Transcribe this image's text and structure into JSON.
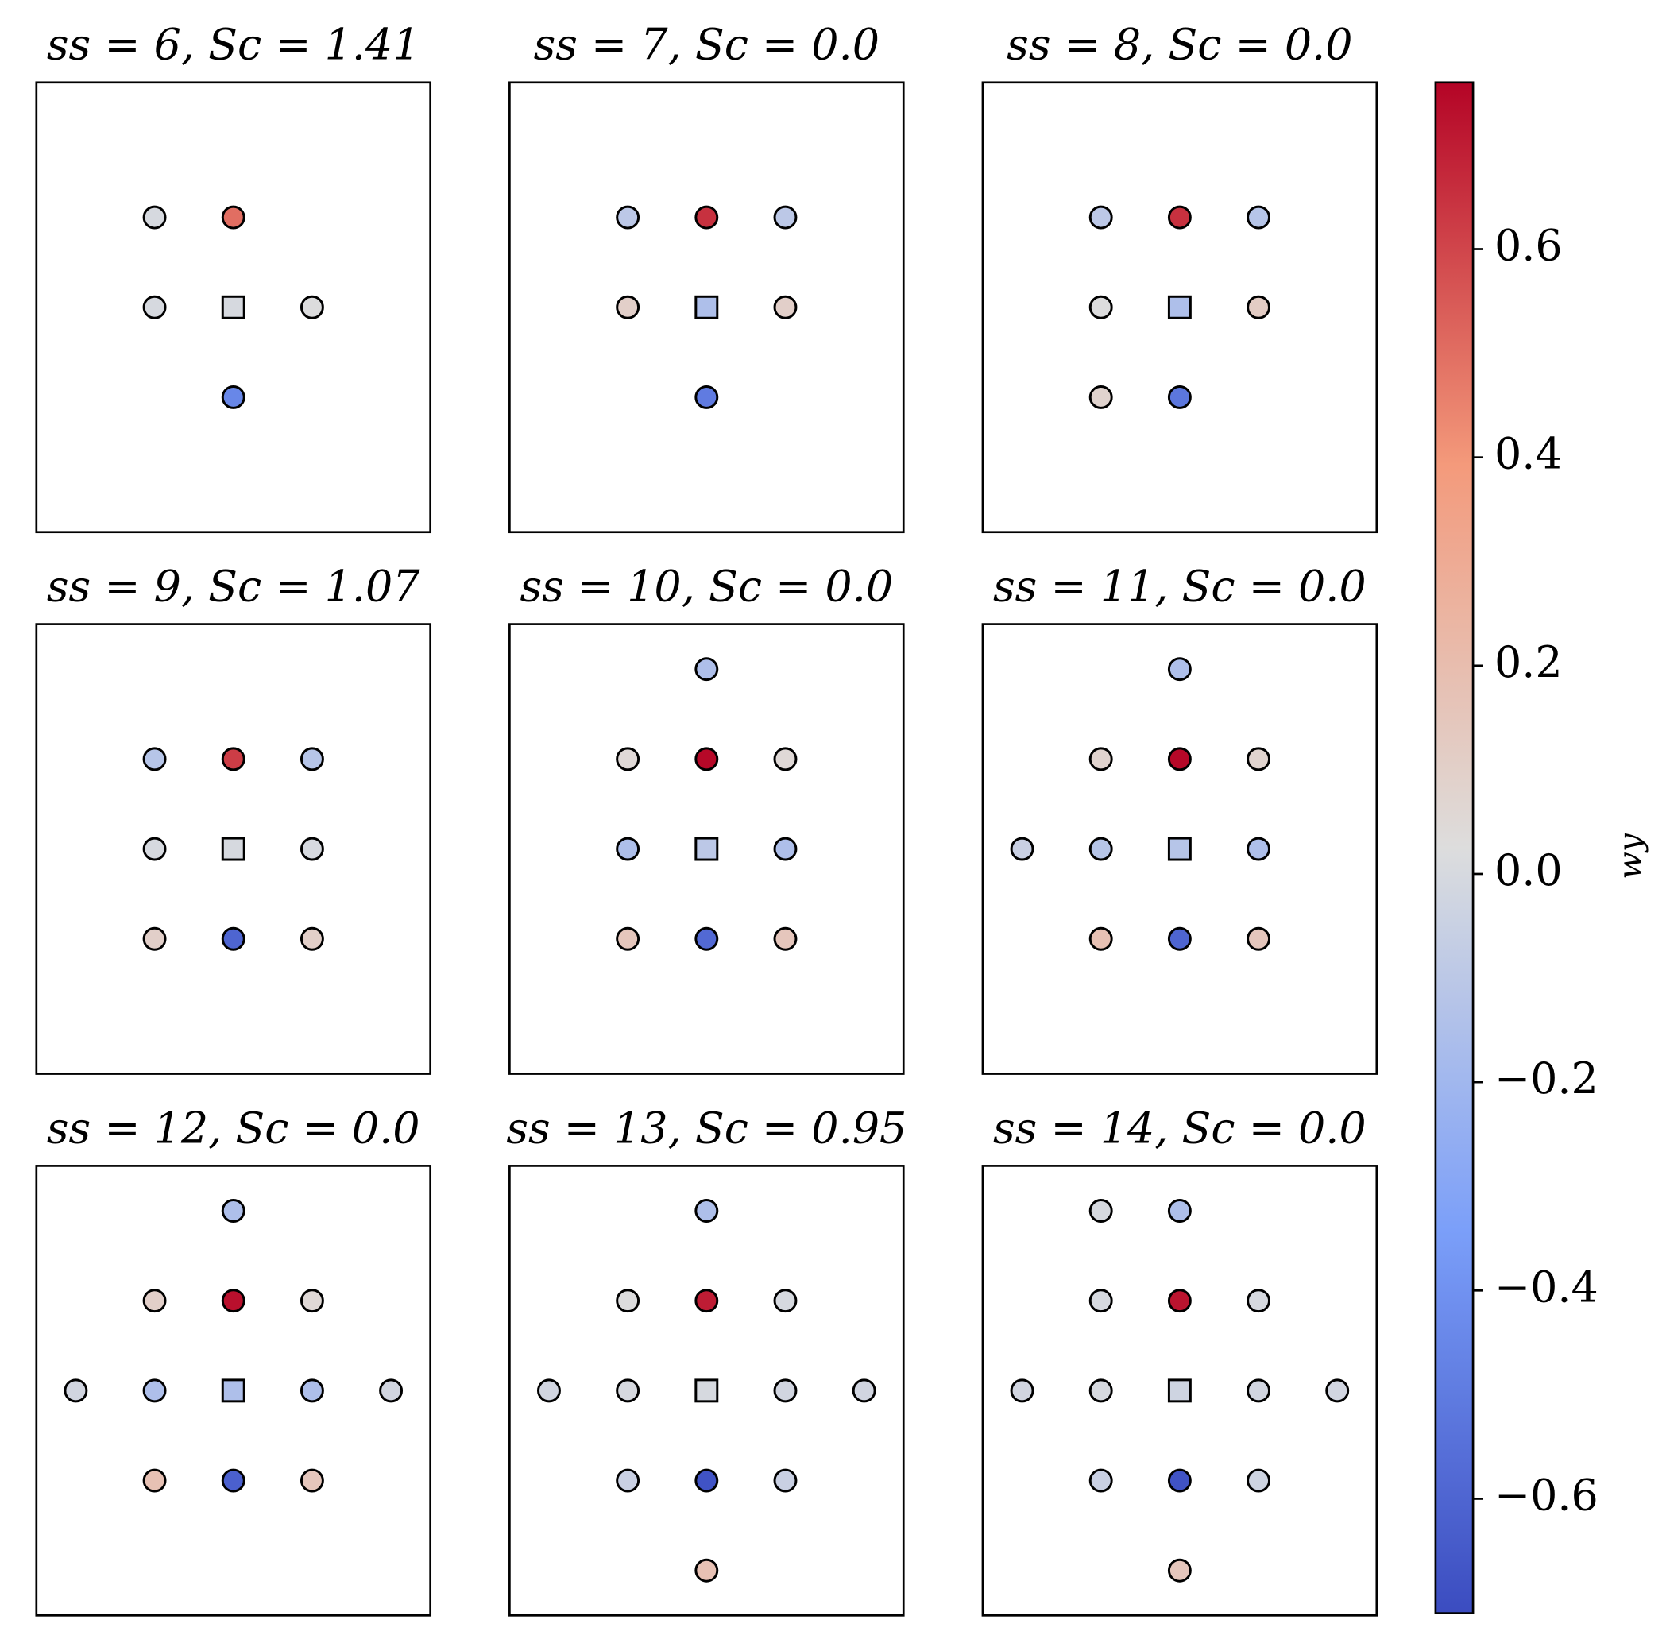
{
  "chart_data": [
    {
      "type": "scatter",
      "title": "ss = 6, Sc = 1.41",
      "xlim": [
        -2.5,
        2.5
      ],
      "ylim": [
        -2.5,
        2.5
      ],
      "x": [
        -1,
        0,
        -1,
        0,
        1,
        0
      ],
      "y": [
        1,
        1,
        0,
        0,
        0,
        -1
      ],
      "values": [
        0.0,
        0.5,
        0.0,
        0.0,
        0.02,
        -0.45
      ],
      "markers": [
        "o",
        "o",
        "o",
        "s",
        "o",
        "o"
      ]
    },
    {
      "type": "scatter",
      "title": "ss = 7, Sc = 0.0",
      "xlim": [
        -2.5,
        2.5
      ],
      "ylim": [
        -2.5,
        2.5
      ],
      "x": [
        -1,
        0,
        1,
        -1,
        0,
        1,
        0
      ],
      "y": [
        1,
        1,
        1,
        0,
        0,
        0,
        -1
      ],
      "values": [
        -0.1,
        0.65,
        -0.1,
        0.1,
        -0.15,
        0.1,
        -0.5
      ],
      "markers": [
        "o",
        "o",
        "o",
        "o",
        "s",
        "o",
        "o"
      ]
    },
    {
      "type": "scatter",
      "title": "ss = 8, Sc = 0.0",
      "xlim": [
        -2.5,
        2.5
      ],
      "ylim": [
        -2.5,
        2.5
      ],
      "x": [
        -1,
        0,
        1,
        -1,
        0,
        1,
        -1,
        0
      ],
      "y": [
        1,
        1,
        1,
        0,
        0,
        0,
        -1,
        -1
      ],
      "values": [
        -0.1,
        0.65,
        -0.12,
        0.02,
        -0.15,
        0.12,
        0.08,
        -0.52
      ],
      "markers": [
        "o",
        "o",
        "o",
        "o",
        "s",
        "o",
        "o",
        "o"
      ]
    },
    {
      "type": "scatter",
      "title": "ss = 9, Sc = 1.07",
      "xlim": [
        -2.5,
        2.5
      ],
      "ylim": [
        -2.5,
        2.5
      ],
      "x": [
        -1,
        0,
        1,
        -1,
        0,
        1,
        -1,
        0,
        1
      ],
      "y": [
        1,
        1,
        1,
        0,
        0,
        0,
        -1,
        -1,
        -1
      ],
      "values": [
        -0.12,
        0.62,
        -0.12,
        0.0,
        0.0,
        0.0,
        0.1,
        -0.6,
        0.1
      ],
      "markers": [
        "o",
        "o",
        "o",
        "o",
        "s",
        "o",
        "o",
        "o",
        "o"
      ]
    },
    {
      "type": "scatter",
      "title": "ss = 10, Sc = 0.0",
      "xlim": [
        -2.5,
        2.5
      ],
      "ylim": [
        -2.5,
        2.5
      ],
      "x": [
        0,
        -1,
        0,
        1,
        -1,
        0,
        1,
        -1,
        0,
        1
      ],
      "y": [
        2,
        1,
        1,
        1,
        0,
        0,
        0,
        -1,
        -1,
        -1
      ],
      "values": [
        -0.15,
        0.05,
        0.75,
        0.05,
        -0.15,
        -0.1,
        -0.15,
        0.15,
        -0.58,
        0.15
      ],
      "markers": [
        "o",
        "o",
        "o",
        "o",
        "o",
        "s",
        "o",
        "o",
        "o",
        "o"
      ]
    },
    {
      "type": "scatter",
      "title": "ss = 11, Sc = 0.0",
      "xlim": [
        -2.5,
        2.5
      ],
      "ylim": [
        -2.5,
        2.5
      ],
      "x": [
        0,
        -1,
        0,
        1,
        -2,
        -1,
        0,
        1,
        -1,
        0,
        1
      ],
      "y": [
        2,
        1,
        1,
        1,
        0,
        0,
        0,
        0,
        -1,
        -1,
        -1
      ],
      "values": [
        -0.15,
        0.08,
        0.75,
        0.08,
        -0.05,
        -0.12,
        -0.12,
        -0.15,
        0.18,
        -0.6,
        0.15
      ],
      "markers": [
        "o",
        "o",
        "o",
        "o",
        "o",
        "o",
        "s",
        "o",
        "o",
        "o",
        "o"
      ]
    },
    {
      "type": "scatter",
      "title": "ss = 12, Sc = 0.0",
      "xlim": [
        -2.5,
        2.5
      ],
      "ylim": [
        -2.5,
        2.5
      ],
      "x": [
        0,
        -1,
        0,
        1,
        -2,
        -1,
        0,
        1,
        2,
        -1,
        0,
        1
      ],
      "y": [
        2,
        1,
        1,
        1,
        0,
        0,
        0,
        0,
        0,
        -1,
        -1,
        -1
      ],
      "values": [
        -0.15,
        0.1,
        0.73,
        0.05,
        -0.02,
        -0.15,
        -0.15,
        -0.15,
        -0.02,
        0.18,
        -0.62,
        0.15
      ],
      "markers": [
        "o",
        "o",
        "o",
        "o",
        "o",
        "o",
        "s",
        "o",
        "o",
        "o",
        "o",
        "o"
      ]
    },
    {
      "type": "scatter",
      "title": "ss = 13, Sc = 0.95",
      "xlim": [
        -2.5,
        2.5
      ],
      "ylim": [
        -2.5,
        2.5
      ],
      "x": [
        0,
        -1,
        0,
        1,
        -2,
        -1,
        0,
        1,
        2,
        -1,
        0,
        1,
        0
      ],
      "y": [
        2,
        1,
        1,
        1,
        0,
        0,
        0,
        0,
        0,
        -1,
        -1,
        -1,
        -2
      ],
      "values": [
        -0.15,
        0.02,
        0.7,
        0.0,
        -0.02,
        0.0,
        0.0,
        -0.02,
        -0.02,
        -0.05,
        -0.68,
        -0.05,
        0.18
      ],
      "markers": [
        "o",
        "o",
        "o",
        "o",
        "o",
        "o",
        "s",
        "o",
        "o",
        "o",
        "o",
        "o",
        "o"
      ]
    },
    {
      "type": "scatter",
      "title": "ss = 14, Sc = 0.0",
      "xlim": [
        -2.5,
        2.5
      ],
      "ylim": [
        -2.5,
        2.5
      ],
      "x": [
        -1,
        0,
        -1,
        0,
        1,
        -2,
        -1,
        0,
        1,
        2,
        -1,
        0,
        1,
        0
      ],
      "y": [
        2,
        2,
        1,
        1,
        1,
        0,
        0,
        0,
        0,
        0,
        -1,
        -1,
        -1,
        -2
      ],
      "values": [
        0.0,
        -0.15,
        0.0,
        0.72,
        0.0,
        -0.02,
        0.0,
        -0.03,
        -0.02,
        -0.02,
        -0.05,
        -0.68,
        -0.03,
        0.15
      ],
      "markers": [
        "o",
        "o",
        "o",
        "o",
        "o",
        "o",
        "o",
        "s",
        "o",
        "o",
        "o",
        "o",
        "o",
        "o"
      ]
    }
  ],
  "colorbar": {
    "label": "wy",
    "colormap": "coolwarm",
    "clim": [
      -0.71,
      0.76
    ],
    "ticks": [
      {
        "value": -0.6,
        "label": "−0.6"
      },
      {
        "value": -0.4,
        "label": "−0.4"
      },
      {
        "value": -0.2,
        "label": "−0.2"
      },
      {
        "value": 0,
        "label": "0.0"
      },
      0.2,
      0.4,
      0.6
    ]
  }
}
